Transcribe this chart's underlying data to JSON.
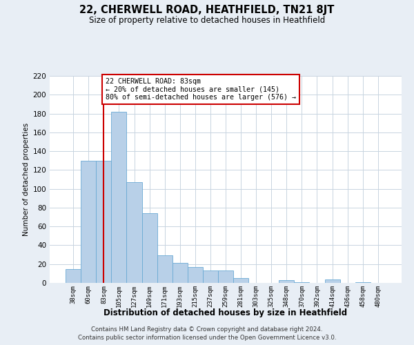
{
  "title": "22, CHERWELL ROAD, HEATHFIELD, TN21 8JT",
  "subtitle": "Size of property relative to detached houses in Heathfield",
  "xlabel": "Distribution of detached houses by size in Heathfield",
  "ylabel": "Number of detached properties",
  "bar_labels": [
    "38sqm",
    "60sqm",
    "83sqm",
    "105sqm",
    "127sqm",
    "149sqm",
    "171sqm",
    "193sqm",
    "215sqm",
    "237sqm",
    "259sqm",
    "281sqm",
    "303sqm",
    "325sqm",
    "348sqm",
    "370sqm",
    "392sqm",
    "414sqm",
    "436sqm",
    "458sqm",
    "480sqm"
  ],
  "bar_heights": [
    15,
    130,
    130,
    182,
    107,
    74,
    29,
    21,
    17,
    13,
    13,
    5,
    0,
    0,
    3,
    1,
    0,
    4,
    0,
    1,
    0
  ],
  "bar_color": "#b8d0e8",
  "bar_edgecolor": "#6aaad4",
  "vline_x": 2,
  "vline_color": "#cc0000",
  "annotation_text": "22 CHERWELL ROAD: 83sqm\n← 20% of detached houses are smaller (145)\n80% of semi-detached houses are larger (576) →",
  "annotation_box_color": "#ffffff",
  "annotation_border_color": "#cc0000",
  "ylim": [
    0,
    220
  ],
  "yticks": [
    0,
    20,
    40,
    60,
    80,
    100,
    120,
    140,
    160,
    180,
    200,
    220
  ],
  "footer_line1": "Contains HM Land Registry data © Crown copyright and database right 2024.",
  "footer_line2": "Contains public sector information licensed under the Open Government Licence v3.0.",
  "bg_color": "#e8eef5",
  "plot_bg_color": "#ffffff",
  "grid_color": "#c8d4e0"
}
